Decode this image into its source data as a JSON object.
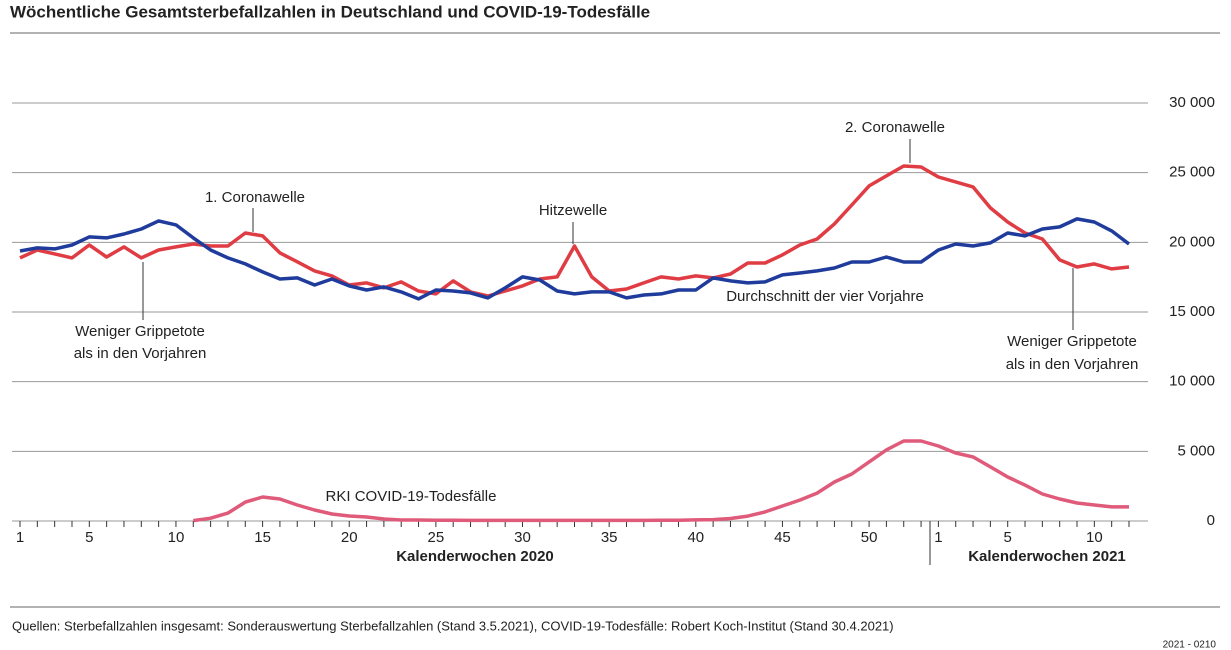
{
  "chart_data": {
    "type": "line",
    "title": "Wöchentliche Gesamtsterbefallzahlen in Deutschland und COVID-19-Todesfälle",
    "categories": [
      "1",
      null,
      null,
      null,
      "5",
      null,
      null,
      null,
      null,
      "10",
      null,
      null,
      null,
      null,
      "15",
      null,
      null,
      null,
      null,
      "20",
      null,
      null,
      null,
      null,
      "25",
      null,
      null,
      null,
      null,
      "30",
      null,
      null,
      null,
      null,
      "35",
      null,
      null,
      null,
      null,
      "40",
      null,
      null,
      null,
      null,
      "45",
      null,
      null,
      null,
      null,
      "50",
      null,
      null,
      null,
      "1",
      null,
      null,
      null,
      "5",
      null,
      null,
      null,
      null,
      "10",
      null,
      null
    ],
    "x_labels": [
      "Kalenderwochen 2020",
      "Kalenderwochen 2021"
    ],
    "series": [
      {
        "color": "#e03c44",
        "values": [
          18880,
          19450,
          19170,
          18880,
          19810,
          18950,
          19670,
          18880,
          19450,
          19670,
          19880,
          19740,
          19740,
          20670,
          20460,
          19240,
          18600,
          17950,
          17590,
          16940,
          17090,
          16730,
          17160,
          16510,
          16300,
          17230,
          16440,
          16150,
          16510,
          16870,
          17370,
          17520,
          19740,
          17520,
          16510,
          16650,
          17090,
          17520,
          17370,
          17590,
          17450,
          17730,
          18520,
          18520,
          19100,
          19810,
          20240,
          21320,
          22680,
          24050,
          24770,
          25480,
          25410,
          24690,
          24340,
          23980,
          22470,
          21460,
          20670,
          20240,
          18740,
          18230,
          18450,
          18090,
          18230
        ]
      },
      {
        "name": "Durchschnitt der vier Vorjahre",
        "color": "#1f3b9b",
        "values": [
          19380,
          19600,
          19530,
          19810,
          20390,
          20320,
          20600,
          20960,
          21540,
          21250,
          20320,
          19450,
          18880,
          18450,
          17880,
          17370,
          17450,
          16940,
          17370,
          16870,
          16580,
          16800,
          16440,
          15940,
          16580,
          16510,
          16370,
          16010,
          16730,
          17520,
          17300,
          16510,
          16300,
          16440,
          16440,
          16010,
          16220,
          16300,
          16580,
          16580,
          17450,
          17230,
          17090,
          17160,
          17660,
          17800,
          17950,
          18160,
          18590,
          18590,
          18950,
          18590,
          18590,
          19450,
          19880,
          19740,
          19960,
          20670,
          20460,
          20960,
          21110,
          21680,
          21460,
          20820,
          19880
        ]
      },
      {
        "name": "RKI COVID-19-Todesfälle",
        "color": "#e05a7a",
        "values": [
          null,
          null,
          null,
          null,
          null,
          null,
          null,
          null,
          null,
          null,
          30,
          200,
          570,
          1360,
          1720,
          1580,
          1150,
          790,
          500,
          360,
          290,
          140,
          70,
          70,
          60,
          50,
          40,
          40,
          40,
          40,
          40,
          40,
          40,
          40,
          40,
          40,
          40,
          50,
          60,
          80,
          100,
          180,
          350,
          650,
          1080,
          1500,
          2000,
          2800,
          3370,
          4240,
          5100,
          5740,
          5740,
          5380,
          4880,
          4600,
          3880,
          3160,
          2580,
          1940,
          1580,
          1290,
          1150,
          1010,
          1010
        ]
      }
    ],
    "annotations": [
      "1. Coronawelle",
      "Hitzewelle",
      "2. Coronawelle",
      "Weniger Grippetote",
      "als in den Vorjahren",
      "Weniger Grippetote",
      "als in den Vorjahren"
    ],
    "ylim": [
      0,
      30000
    ],
    "yticks": [
      0,
      {
        "value": 5000,
        "label": "5 000"
      },
      {
        "value": 10000,
        "label": "10 000"
      },
      {
        "value": 15000,
        "label": "15 000"
      },
      {
        "value": 20000,
        "label": "20 000"
      },
      {
        "value": 25000,
        "label": "25 000"
      },
      {
        "value": 30000,
        "label": "30 000"
      }
    ],
    "grid": true,
    "source": "Quellen:  Sterbefallzahlen insgesamt: Sonderauswertung Sterbefallzahlen (Stand 3.5.2021), COVID-19-Todesfälle: Robert Koch-Institut (Stand 30.4.2021)",
    "code": "2021 - 0210"
  }
}
